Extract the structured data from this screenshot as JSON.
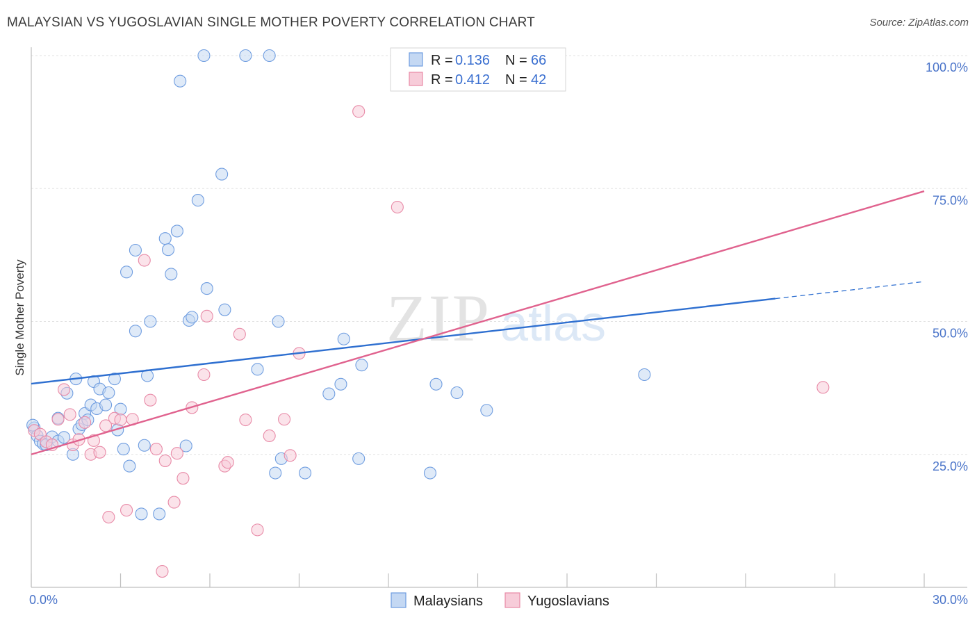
{
  "header": {
    "title": "MALAYSIAN VS YUGOSLAVIAN SINGLE MOTHER POVERTY CORRELATION CHART",
    "source": "Source: ZipAtlas.com"
  },
  "watermark": {
    "zip": "ZIP",
    "atlas": "atlas"
  },
  "legend_box": {
    "entries": [
      {
        "r_label": "R =",
        "r_value": "0.136",
        "n_label": "N =",
        "n_value": "66"
      },
      {
        "r_label": "R =",
        "r_value": "0.412",
        "n_label": "N =",
        "n_value": "42"
      }
    ]
  },
  "chart_data": {
    "type": "scatter",
    "title": "MALAYSIAN VS YUGOSLAVIAN SINGLE MOTHER POVERTY CORRELATION CHART",
    "xlabel": "",
    "ylabel": "Single Mother Poverty",
    "xlim": [
      0,
      30
    ],
    "ylim": [
      0,
      100
    ],
    "x_tick_labels": [
      "0.0%",
      "30.0%"
    ],
    "y_ticks": [
      25,
      50,
      75,
      100
    ],
    "y_tick_labels": [
      "25.0%",
      "50.0%",
      "75.0%",
      "100.0%"
    ],
    "grid": true,
    "legend_position": "top-center",
    "colors": {
      "Malaysians": "#6f9de0",
      "Malaysians_fill": "#c4d8f3",
      "Yugoslavians": "#e88aa7",
      "Yugoslavians_fill": "#f7ccd9",
      "malaysians_line": "#2e6fd0",
      "yugoslavians_line": "#e0628e"
    },
    "series": [
      {
        "name": "Malaysians",
        "R": 0.136,
        "N": 66,
        "trend": {
          "x": [
            0,
            25,
            30
          ],
          "y": [
            38.3,
            54.3,
            57.5
          ],
          "dashed_from_x": 25
        },
        "points": [
          [
            0.1,
            30.0
          ],
          [
            0.2,
            28.5
          ],
          [
            0.3,
            27.5
          ],
          [
            0.4,
            27.0
          ],
          [
            0.5,
            26.8
          ],
          [
            0.7,
            28.3
          ],
          [
            0.9,
            27.5
          ],
          [
            0.9,
            31.8
          ],
          [
            1.1,
            28.2
          ],
          [
            1.2,
            36.5
          ],
          [
            1.4,
            25.0
          ],
          [
            1.5,
            39.2
          ],
          [
            1.6,
            29.8
          ],
          [
            1.7,
            30.6
          ],
          [
            1.8,
            32.7
          ],
          [
            1.9,
            31.5
          ],
          [
            2.0,
            34.3
          ],
          [
            2.1,
            38.7
          ],
          [
            2.2,
            33.6
          ],
          [
            2.3,
            37.3
          ],
          [
            2.5,
            34.3
          ],
          [
            2.6,
            36.6
          ],
          [
            2.8,
            39.2
          ],
          [
            2.9,
            29.6
          ],
          [
            3.0,
            33.5
          ],
          [
            3.1,
            26.0
          ],
          [
            3.2,
            59.3
          ],
          [
            3.3,
            22.8
          ],
          [
            3.5,
            63.4
          ],
          [
            3.5,
            48.2
          ],
          [
            3.7,
            13.8
          ],
          [
            3.8,
            26.7
          ],
          [
            3.9,
            39.8
          ],
          [
            4.0,
            50.0
          ],
          [
            4.3,
            13.8
          ],
          [
            4.5,
            65.6
          ],
          [
            4.6,
            63.5
          ],
          [
            4.7,
            58.9
          ],
          [
            4.9,
            67.0
          ],
          [
            5.0,
            95.2
          ],
          [
            5.2,
            26.6
          ],
          [
            5.3,
            50.2
          ],
          [
            5.4,
            50.8
          ],
          [
            5.6,
            72.8
          ],
          [
            5.8,
            100.0
          ],
          [
            5.9,
            56.2
          ],
          [
            6.4,
            77.7
          ],
          [
            6.5,
            52.2
          ],
          [
            7.2,
            100.0
          ],
          [
            7.6,
            41.0
          ],
          [
            8.0,
            100.0
          ],
          [
            8.2,
            21.5
          ],
          [
            8.3,
            50.0
          ],
          [
            8.4,
            24.2
          ],
          [
            9.2,
            21.5
          ],
          [
            10.0,
            36.4
          ],
          [
            10.4,
            38.2
          ],
          [
            10.5,
            46.7
          ],
          [
            11.0,
            24.2
          ],
          [
            11.1,
            41.8
          ],
          [
            13.4,
            21.5
          ],
          [
            13.6,
            38.2
          ],
          [
            14.3,
            36.6
          ],
          [
            15.3,
            33.3
          ],
          [
            20.6,
            40.0
          ],
          [
            0.05,
            30.5
          ]
        ]
      },
      {
        "name": "Yugoslavians",
        "R": 0.412,
        "N": 42,
        "trend": {
          "x": [
            0,
            30
          ],
          "y": [
            25.0,
            74.5
          ]
        },
        "points": [
          [
            0.1,
            29.5
          ],
          [
            0.3,
            28.8
          ],
          [
            0.5,
            27.4
          ],
          [
            0.7,
            26.8
          ],
          [
            0.9,
            31.6
          ],
          [
            1.1,
            37.2
          ],
          [
            1.3,
            32.5
          ],
          [
            1.4,
            26.8
          ],
          [
            1.6,
            27.8
          ],
          [
            1.8,
            31.0
          ],
          [
            2.0,
            25.0
          ],
          [
            2.1,
            27.6
          ],
          [
            2.3,
            25.4
          ],
          [
            2.5,
            30.4
          ],
          [
            2.6,
            13.2
          ],
          [
            2.8,
            31.8
          ],
          [
            3.0,
            31.5
          ],
          [
            3.2,
            14.5
          ],
          [
            3.4,
            31.6
          ],
          [
            3.8,
            61.5
          ],
          [
            4.0,
            35.2
          ],
          [
            4.2,
            26.0
          ],
          [
            4.4,
            3.0
          ],
          [
            4.5,
            23.8
          ],
          [
            4.8,
            16.0
          ],
          [
            4.9,
            25.2
          ],
          [
            5.1,
            20.5
          ],
          [
            5.4,
            33.8
          ],
          [
            5.8,
            40.0
          ],
          [
            5.9,
            51.0
          ],
          [
            6.5,
            22.8
          ],
          [
            6.6,
            23.5
          ],
          [
            7.0,
            47.6
          ],
          [
            7.2,
            31.5
          ],
          [
            7.6,
            10.8
          ],
          [
            8.0,
            28.5
          ],
          [
            8.5,
            31.6
          ],
          [
            8.7,
            24.8
          ],
          [
            9.0,
            44.0
          ],
          [
            11.0,
            89.5
          ],
          [
            12.3,
            71.5
          ],
          [
            26.6,
            37.6
          ]
        ]
      }
    ]
  },
  "bottom_legend": {
    "items": [
      {
        "label": "Malaysians"
      },
      {
        "label": "Yugoslavians"
      }
    ]
  }
}
